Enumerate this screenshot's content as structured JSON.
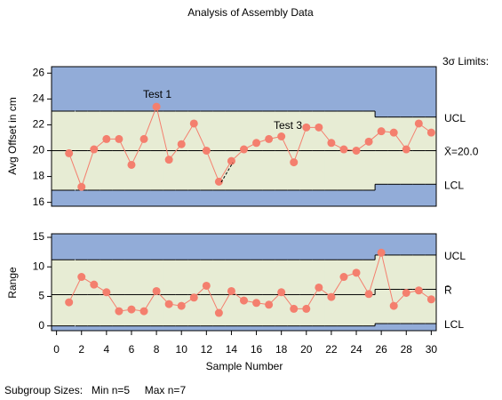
{
  "title": "Analysis of Assembly Data",
  "limits_heading": "3σ Limits:",
  "footnote": "Subgroup Sizes:   Min n=5     Max n=7",
  "xlabel": "Sample Number",
  "chart_data": [
    {
      "type": "line",
      "ylabel": "Avg Offset in cm",
      "x": [
        1,
        2,
        3,
        4,
        5,
        6,
        7,
        8,
        9,
        10,
        11,
        12,
        13,
        14,
        15,
        16,
        17,
        18,
        19,
        20,
        21,
        22,
        23,
        24,
        25,
        26,
        27,
        28,
        29,
        30
      ],
      "values": [
        19.8,
        17.2,
        20.1,
        20.9,
        20.9,
        18.9,
        20.9,
        23.4,
        19.3,
        20.5,
        22.1,
        20.0,
        17.6,
        19.2,
        20.1,
        20.6,
        20.9,
        21.1,
        19.1,
        21.8,
        21.8,
        20.6,
        20.1,
        20.0,
        20.7,
        21.5,
        21.4,
        20.1,
        22.1,
        21.4
      ],
      "ucl": [
        23.06,
        23.06,
        23.06,
        23.06,
        23.06,
        23.06,
        23.06,
        23.06,
        23.06,
        23.06,
        23.06,
        23.06,
        23.06,
        23.06,
        23.06,
        23.06,
        23.06,
        23.06,
        23.06,
        23.06,
        23.06,
        23.06,
        23.06,
        23.06,
        23.06,
        22.6,
        22.6,
        22.6,
        22.6,
        22.6
      ],
      "center": [
        20.0,
        20.0,
        20.0,
        20.0,
        20.0,
        20.0,
        20.0,
        20.0,
        20.0,
        20.0,
        20.0,
        20.0,
        20.0,
        20.0,
        20.0,
        20.0,
        20.0,
        20.0,
        20.0,
        20.0,
        20.0,
        20.0,
        20.0,
        20.0,
        20.0,
        20.0,
        20.0,
        20.0,
        20.0,
        20.0
      ],
      "lcl": [
        16.94,
        16.94,
        16.94,
        16.94,
        16.94,
        16.94,
        16.94,
        16.94,
        16.94,
        16.94,
        16.94,
        16.94,
        16.94,
        16.94,
        16.94,
        16.94,
        16.94,
        16.94,
        16.94,
        16.94,
        16.94,
        16.94,
        16.94,
        16.94,
        16.94,
        17.4,
        17.4,
        17.4,
        17.4,
        17.4
      ],
      "limit_labels": {
        "ucl": "UCL",
        "center": "X̄=20.0",
        "lcl": "LCL"
      },
      "annotations": [
        "Test 1",
        "Test 3"
      ],
      "xlim": [
        -0.4,
        30.4
      ],
      "ylim": [
        15.7,
        26.5
      ],
      "yticks": [
        16,
        18,
        20,
        22,
        24,
        26
      ],
      "color": "#f47f6e",
      "zone_color": "#92acd8",
      "band_color": "#e7ecd4"
    },
    {
      "type": "line",
      "ylabel": "Range",
      "x": [
        1,
        2,
        3,
        4,
        5,
        6,
        7,
        8,
        9,
        10,
        11,
        12,
        13,
        14,
        15,
        16,
        17,
        18,
        19,
        20,
        21,
        22,
        23,
        24,
        25,
        26,
        27,
        28,
        29,
        30
      ],
      "values": [
        4.0,
        8.3,
        7.0,
        5.7,
        2.5,
        2.8,
        2.5,
        5.9,
        3.7,
        3.4,
        4.8,
        6.8,
        2.2,
        5.9,
        4.3,
        3.9,
        3.6,
        5.7,
        2.9,
        2.9,
        6.5,
        4.9,
        8.3,
        9.0,
        5.4,
        12.4,
        3.4,
        5.6,
        6.0,
        4.5
      ],
      "ucl": [
        11.2,
        11.2,
        11.2,
        11.2,
        11.2,
        11.2,
        11.2,
        11.2,
        11.2,
        11.2,
        11.2,
        11.2,
        11.2,
        11.2,
        11.2,
        11.2,
        11.2,
        11.2,
        11.2,
        11.2,
        11.2,
        11.2,
        11.2,
        11.2,
        11.2,
        12.0,
        12.0,
        12.0,
        12.0,
        12.0
      ],
      "center": [
        5.3,
        5.3,
        5.3,
        5.3,
        5.3,
        5.3,
        5.3,
        5.3,
        5.3,
        5.3,
        5.3,
        5.3,
        5.3,
        5.3,
        5.3,
        5.3,
        5.3,
        5.3,
        5.3,
        5.3,
        5.3,
        5.3,
        5.3,
        5.3,
        5.3,
        6.2,
        6.2,
        6.2,
        6.2,
        6.2
      ],
      "lcl": [
        0,
        0,
        0,
        0,
        0,
        0,
        0,
        0,
        0,
        0,
        0,
        0,
        0,
        0,
        0,
        0,
        0,
        0,
        0,
        0,
        0,
        0,
        0,
        0,
        0,
        0.4,
        0.4,
        0.4,
        0.4,
        0.4
      ],
      "limit_labels": {
        "ucl": "UCL",
        "center": "R̄",
        "lcl": "LCL"
      },
      "xlim": [
        -0.4,
        30.4
      ],
      "ylim": [
        -0.8,
        15.6
      ],
      "yticks": [
        0,
        5,
        10,
        15
      ],
      "xticks": [
        0,
        2,
        4,
        6,
        8,
        10,
        12,
        14,
        16,
        18,
        20,
        22,
        24,
        26,
        28,
        30
      ],
      "color": "#f47f6e",
      "zone_color": "#92acd8",
      "band_color": "#e7ecd4"
    }
  ]
}
